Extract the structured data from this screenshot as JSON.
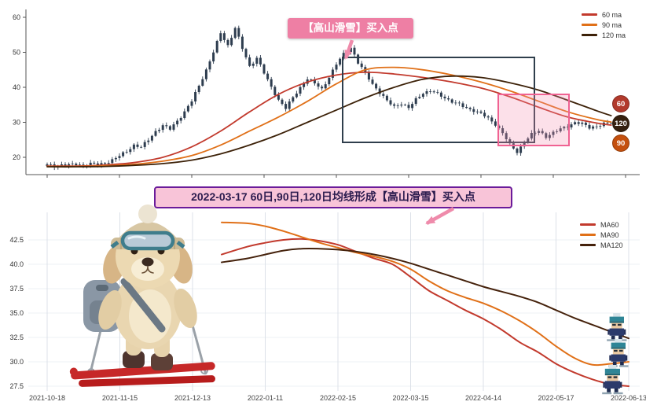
{
  "annotations": {
    "callout": "【高山滑雪】买入点",
    "banner": "2022-03-17 60日,90日,120日均线形成【高山滑雪】买入点"
  },
  "right_badges": [
    {
      "label": "60",
      "color": "#b23a2c"
    },
    {
      "label": "120",
      "color": "#35200f"
    },
    {
      "label": "90",
      "color": "#c4500e"
    }
  ],
  "colors": {
    "candle": "#2e3d4f",
    "callout_bg": "#ee7fa4",
    "arrow": "#ef8bab",
    "banner_bg": "#f8c4d8",
    "banner_border": "#6a1b9a",
    "banner_text": "#2b1b4e",
    "highlight_box": "#2f3e4c",
    "pink_box": "#f06292"
  },
  "chart_data": [
    {
      "type": "candlestick",
      "x_start": "2021-10-18",
      "x_end": "2022-06-13",
      "x_tick_interval_days": 20,
      "ylim": [
        15,
        62
      ],
      "y_ticks": [
        60,
        50,
        40,
        30,
        20
      ],
      "grid": false,
      "legend_position": "top-right",
      "close_every_2_days": [
        17.8,
        17.6,
        17.9,
        17.7,
        18.0,
        17.8,
        18.1,
        17.9,
        18.4,
        19.2,
        20.3,
        21.8,
        23.5,
        22.8,
        25.0,
        27.5,
        29.0,
        28.0,
        30.5,
        33.0,
        36.0,
        40.5,
        45.0,
        50.0,
        55.5,
        52.0,
        57.0,
        51.0,
        46.0,
        48.5,
        44.0,
        40.0,
        36.5,
        34.0,
        37.0,
        40.0,
        42.5,
        41.0,
        39.5,
        43.0,
        46.5,
        49.5,
        51.5,
        47.0,
        44.0,
        41.0,
        38.5,
        36.0,
        34.5,
        35.5,
        34.0,
        36.5,
        38.5,
        39.0,
        38.0,
        37.0,
        36.0,
        35.0,
        34.0,
        33.5,
        32.5,
        31.0,
        29.5,
        27.0,
        23.5,
        21.5,
        24.5,
        26.5,
        27.5,
        26.0,
        27.0,
        28.0,
        29.0,
        30.0,
        29.5,
        28.5,
        29.0,
        29.5,
        29.8
      ],
      "series": [
        {
          "name": "60 ma",
          "color": "#c23a2d",
          "days": [
            0,
            8,
            16,
            24,
            32,
            40,
            48,
            56,
            64,
            72,
            80,
            88,
            96,
            104,
            112,
            120,
            128,
            136,
            144,
            152,
            156
          ],
          "values": [
            17.5,
            17.5,
            17.8,
            18.5,
            20.0,
            23.0,
            27.5,
            33.0,
            38.0,
            41.5,
            43.5,
            44.3,
            43.8,
            42.8,
            41.5,
            39.8,
            37.3,
            34.3,
            31.5,
            29.8,
            29.2
          ]
        },
        {
          "name": "90 ma",
          "color": "#e07018",
          "days": [
            0,
            8,
            16,
            24,
            32,
            40,
            48,
            56,
            64,
            72,
            80,
            88,
            96,
            104,
            112,
            120,
            128,
            136,
            144,
            152,
            156
          ],
          "values": [
            17.4,
            17.4,
            17.6,
            18.0,
            18.9,
            20.5,
            23.5,
            27.5,
            31.5,
            36.0,
            41.0,
            45.0,
            45.7,
            45.0,
            43.5,
            41.5,
            39.0,
            36.0,
            33.0,
            30.8,
            30.1
          ]
        },
        {
          "name": "120 ma",
          "color": "#3c2108",
          "days": [
            0,
            8,
            16,
            24,
            32,
            40,
            48,
            56,
            64,
            72,
            80,
            88,
            96,
            104,
            112,
            120,
            128,
            136,
            144,
            152,
            156
          ],
          "values": [
            17.3,
            17.3,
            17.4,
            17.7,
            18.2,
            19.2,
            21.0,
            23.5,
            26.5,
            30.0,
            33.5,
            37.0,
            40.0,
            42.3,
            43.2,
            42.8,
            41.3,
            39.2,
            36.3,
            33.3,
            31.9
          ]
        }
      ]
    },
    {
      "type": "line",
      "ylim": [
        27,
        45.5
      ],
      "y_ticks": [
        42.5,
        40.0,
        37.5,
        35.0,
        32.5,
        30.0,
        27.5
      ],
      "x_tick_labels": [
        "2021-10-18",
        "2021-11-15",
        "2021-12-13",
        "2022-01-11",
        "2022-02-15",
        "2022-03-15",
        "2022-04-14",
        "2022-05-17",
        "2022-06-13"
      ],
      "grid": true,
      "legend_position": "top-right",
      "series": [
        {
          "name": "MA60",
          "color": "#c23a2d",
          "days": [
            48,
            55,
            60,
            65,
            70,
            75,
            80,
            85,
            90,
            95,
            100,
            105,
            110,
            115,
            120,
            125,
            130,
            135,
            140,
            145,
            150,
            155,
            160
          ],
          "values": [
            41.0,
            41.8,
            42.2,
            42.5,
            42.6,
            42.4,
            42.0,
            41.3,
            40.6,
            40.0,
            38.7,
            37.3,
            36.3,
            35.3,
            34.4,
            33.3,
            32.0,
            31.0,
            29.8,
            28.9,
            28.2,
            27.7,
            27.5
          ]
        },
        {
          "name": "MA90",
          "color": "#e07018",
          "days": [
            48,
            55,
            60,
            65,
            70,
            75,
            80,
            85,
            90,
            95,
            100,
            105,
            110,
            115,
            120,
            125,
            130,
            135,
            140,
            145,
            150,
            155,
            160
          ],
          "values": [
            44.3,
            44.2,
            43.9,
            43.4,
            42.8,
            42.2,
            41.7,
            41.2,
            40.8,
            40.3,
            39.5,
            38.3,
            37.3,
            36.6,
            36.0,
            35.2,
            34.2,
            33.0,
            31.6,
            30.4,
            29.7,
            29.8,
            30.0
          ]
        },
        {
          "name": "MA120",
          "color": "#45220c",
          "days": [
            48,
            55,
            60,
            65,
            70,
            75,
            80,
            85,
            90,
            95,
            100,
            105,
            110,
            115,
            120,
            125,
            130,
            135,
            140,
            145,
            150,
            155,
            160
          ],
          "values": [
            40.2,
            40.6,
            41.0,
            41.4,
            41.6,
            41.6,
            41.5,
            41.3,
            41.0,
            40.6,
            40.1,
            39.5,
            38.9,
            38.3,
            37.7,
            37.2,
            36.7,
            36.1,
            35.3,
            34.5,
            33.8,
            33.1,
            32.4
          ]
        }
      ]
    }
  ]
}
